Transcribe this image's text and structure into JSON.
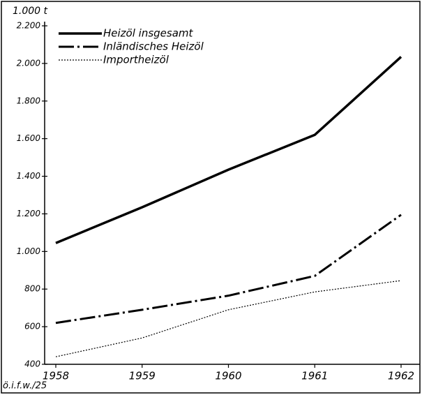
{
  "chart_data": {
    "type": "line",
    "y_unit": "1.000 t",
    "footer": "ö.i.f.w./25",
    "categories": [
      "1958",
      "1959",
      "1960",
      "1961",
      "1962"
    ],
    "series": [
      {
        "name": "Heizöl insgesamt",
        "color": "#000000",
        "linestyle": "solid",
        "values": [
          1045,
          1235,
          1435,
          1620,
          2035
        ]
      },
      {
        "name": "Inländisches Heizöl",
        "color": "#000000",
        "linestyle": "dashdot",
        "values": [
          620,
          690,
          765,
          870,
          1195
        ]
      },
      {
        "name": "Importheizöl",
        "color": "#000000",
        "linestyle": "dotted",
        "values": [
          440,
          540,
          690,
          785,
          845
        ]
      }
    ],
    "ylim": [
      400,
      2200
    ],
    "yticks": [
      400,
      600,
      800,
      {
        "value": 1000,
        "label": "1.000"
      },
      {
        "value": 1200,
        "label": "1.200"
      },
      {
        "value": 1400,
        "label": "1.400"
      },
      {
        "value": 1600,
        "label": "1.600"
      },
      {
        "value": 1800,
        "label": "1.800"
      },
      {
        "value": 2000,
        "label": "2.000"
      },
      {
        "value": 2200,
        "label": "2.200"
      }
    ],
    "legend": "upper left"
  }
}
